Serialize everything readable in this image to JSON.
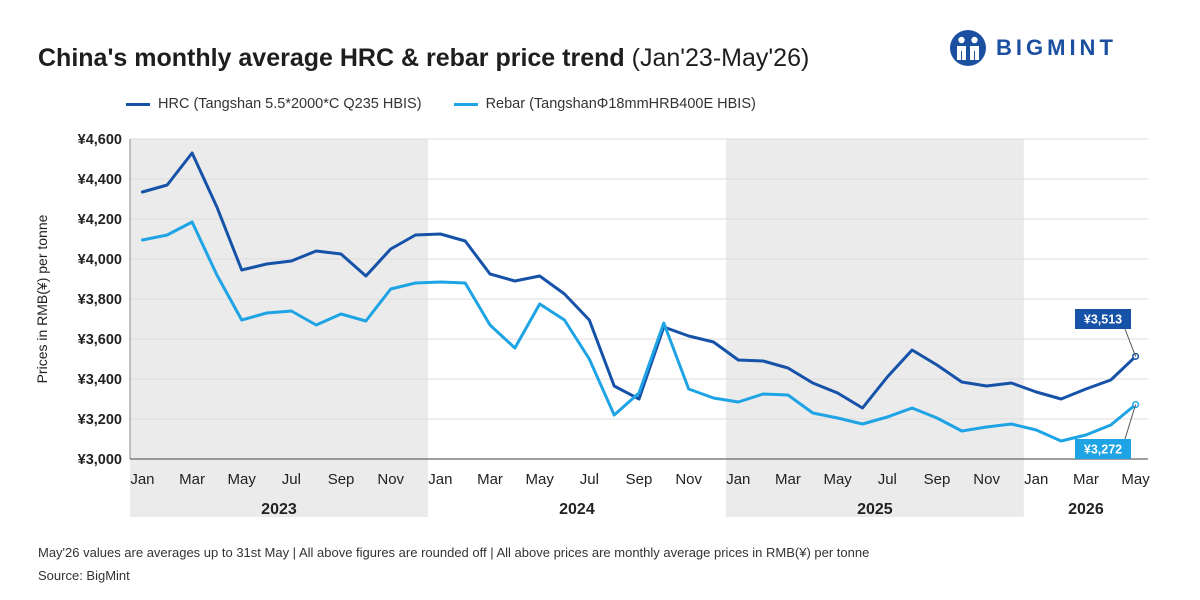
{
  "header": {
    "title_main": "China's monthly average HRC & rebar price trend",
    "title_sub": "(Jan'23-May'26)"
  },
  "brand": {
    "name": "BIGMINT",
    "icon": "bigmint-logo-icon",
    "color": "#1b4fa0"
  },
  "footer": {
    "note": "May'26 values are averages up to 31st May | All above figures are rounded off | All above prices are monthly average prices in RMB(¥) per tonne",
    "source": "Source: BigMint"
  },
  "chart_data": {
    "type": "line",
    "ylabel": "Prices in RMB(¥) per tonne",
    "ylim": [
      3000,
      4600
    ],
    "yticks": [
      3000,
      3200,
      3400,
      3600,
      3800,
      4000,
      4200,
      4400,
      4600
    ],
    "ytick_labels": [
      "¥3,000",
      "¥3,200",
      "¥3,400",
      "¥3,600",
      "¥3,800",
      "¥4,000",
      "¥4,200",
      "¥4,400",
      "¥4,600"
    ],
    "x": [
      "Jan'23",
      "Feb'23",
      "Mar'23",
      "Apr'23",
      "May'23",
      "Jun'23",
      "Jul'23",
      "Aug'23",
      "Sep'23",
      "Oct'23",
      "Nov'23",
      "Dec'23",
      "Jan'24",
      "Feb'24",
      "Mar'24",
      "Apr'24",
      "May'24",
      "Jun'24",
      "Jul'24",
      "Aug'24",
      "Sep'24",
      "Oct'24",
      "Nov'24",
      "Dec'24",
      "Jan'25",
      "Feb'25",
      "Mar'25",
      "Apr'25",
      "May'25",
      "Jun'25",
      "Jul'25",
      "Aug'25",
      "Sep'25",
      "Oct'25",
      "Nov'25",
      "Dec'25",
      "Jan'26",
      "Feb'26",
      "Mar'26",
      "Apr'26",
      "May'26"
    ],
    "xtick_labels": [
      "Jan",
      "",
      "Mar",
      "",
      "May",
      "",
      "Jul",
      "",
      "Sep",
      "",
      "Nov",
      "",
      "Jan",
      "",
      "Mar",
      "",
      "May",
      "",
      "Jul",
      "",
      "Sep",
      "",
      "Nov",
      "",
      "Jan",
      "",
      "Mar",
      "",
      "May",
      "",
      "Jul",
      "",
      "Sep",
      "",
      "Nov",
      "",
      "Jan",
      "",
      "Mar",
      "",
      "May"
    ],
    "years": [
      {
        "label": "2023",
        "start": 0,
        "end": 11,
        "shaded": true
      },
      {
        "label": "2024",
        "start": 12,
        "end": 23,
        "shaded": false
      },
      {
        "label": "2025",
        "start": 24,
        "end": 35,
        "shaded": true
      },
      {
        "label": "2026",
        "start": 36,
        "end": 40,
        "shaded": false
      }
    ],
    "series": [
      {
        "name": "HRC (Tangshan 5.5*2000*C Q235 HBIS)",
        "color": "#1652a8",
        "values": [
          4335,
          4370,
          4530,
          4260,
          3945,
          3975,
          3990,
          4040,
          4025,
          3915,
          4050,
          4120,
          4125,
          4090,
          3925,
          3890,
          3915,
          3825,
          3695,
          3365,
          3300,
          3660,
          3615,
          3585,
          3495,
          3490,
          3455,
          3380,
          3330,
          3255,
          3410,
          3545,
          3470,
          3385,
          3365,
          3380,
          3335,
          3300,
          3350,
          3395,
          3513
        ],
        "end_label": "¥3,513"
      },
      {
        "name": "Rebar (TangshanΦ18mmHRB400E HBIS)",
        "color": "#1ea4e4",
        "values": [
          4095,
          4120,
          4185,
          3920,
          3695,
          3730,
          3740,
          3670,
          3725,
          3690,
          3850,
          3880,
          3885,
          3880,
          3670,
          3555,
          3775,
          3695,
          3500,
          3220,
          3330,
          3680,
          3350,
          3305,
          3285,
          3325,
          3320,
          3230,
          3205,
          3175,
          3210,
          3255,
          3205,
          3140,
          3160,
          3175,
          3145,
          3090,
          3120,
          3170,
          3272
        ],
        "end_label": "¥3,272"
      }
    ],
    "grid": true,
    "legend_position": "top-left"
  }
}
